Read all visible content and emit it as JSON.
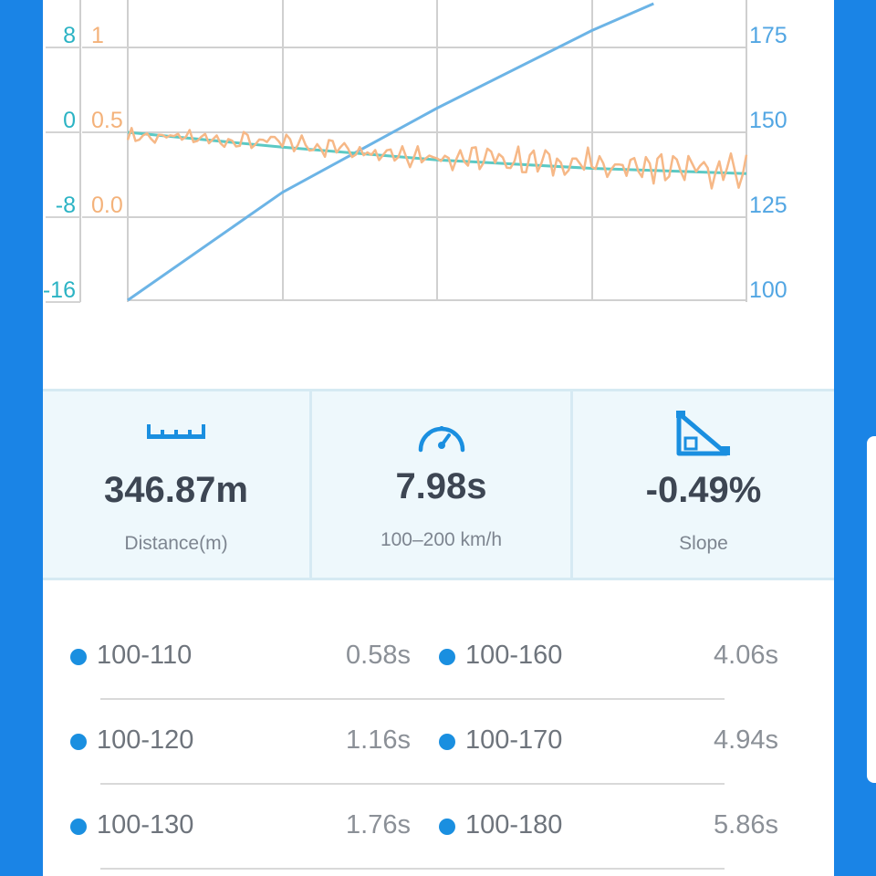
{
  "chart_data": {
    "type": "line",
    "title": "",
    "xlabel": "",
    "axes": {
      "left_outer": {
        "ticks": [
          "8",
          "0",
          "-8",
          "-16"
        ],
        "color": "#2bb3c4"
      },
      "left_inner": {
        "ticks": [
          "1",
          "0.5",
          "0.0"
        ],
        "color": "#f4b27a"
      },
      "right": {
        "ticks": [
          "175",
          "150",
          "125",
          "100"
        ],
        "color": "#52a6e3"
      }
    },
    "grid": true,
    "series": [
      {
        "axis": "right",
        "color": "#6cb4e6",
        "x": [
          0,
          0.25,
          0.5,
          0.75,
          0.85
        ],
        "y": [
          100,
          132,
          157,
          180,
          188
        ]
      },
      {
        "axis": "left_outer",
        "color": "#5cc9c4",
        "x": [
          0,
          0.25,
          0.5,
          0.75,
          1.0
        ],
        "y": [
          0,
          -1.4,
          -2.6,
          -3.4,
          -3.9
        ]
      },
      {
        "axis": "left_inner",
        "color": "#f6b887",
        "x": [
          0,
          0.25,
          0.5,
          0.75,
          1.0
        ],
        "y": [
          0.48,
          0.44,
          0.36,
          0.31,
          0.26
        ]
      }
    ]
  },
  "stats": {
    "distance": {
      "icon": "ruler-icon",
      "value": "346.87m",
      "label": "Distance(m)"
    },
    "time": {
      "icon": "speedometer-icon",
      "value": "7.98s",
      "label": "100–200 km/h"
    },
    "slope": {
      "icon": "slope-icon",
      "value": "-0.49%",
      "label": "Slope"
    }
  },
  "splits": [
    {
      "left_name": "100-110",
      "left_time": "0.58s",
      "right_name": "100-160",
      "right_time": "4.06s"
    },
    {
      "left_name": "100-120",
      "left_time": "1.16s",
      "right_name": "100-170",
      "right_time": "4.94s"
    },
    {
      "left_name": "100-130",
      "left_time": "1.76s",
      "right_name": "100-180",
      "right_time": "5.86s"
    }
  ],
  "colors": {
    "accent": "#1a84e6",
    "dot": "#1a8fe0",
    "value_text": "#3d4653"
  }
}
